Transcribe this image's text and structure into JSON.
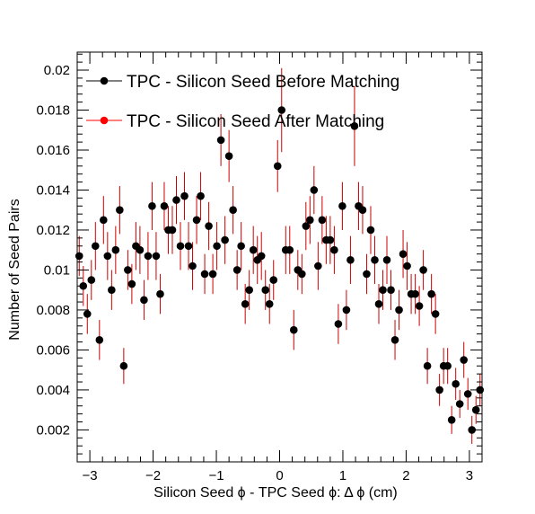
{
  "chart_data": {
    "type": "scatter",
    "title": "",
    "xlabel": "Silicon Seed  ϕ - TPC Seed  ϕ: Δ ϕ (cm)",
    "ylabel": "Number of Seed Pairs",
    "xlim": [
      -3.2,
      3.2
    ],
    "ylim": [
      0.0004,
      0.0209
    ],
    "xticks": [
      -3,
      -2,
      -1,
      0,
      1,
      2,
      3
    ],
    "xtick_labels": [
      "−3",
      "−2",
      "−1",
      "0",
      "1",
      "2",
      "3"
    ],
    "yticks": [
      0.002,
      0.004,
      0.006,
      0.008,
      0.01,
      0.012,
      0.014,
      0.016,
      0.018,
      0.02
    ],
    "ytick_labels": [
      "0.002",
      "0.004",
      "0.006",
      "0.008",
      "0.01",
      "0.012",
      "0.014",
      "0.016",
      "0.018",
      "0.02"
    ],
    "grid": false,
    "legend_position": "top-left",
    "series": [
      {
        "name": "TPC - Silicon Seed Before Matching",
        "marker_color": "#000000",
        "error_color": "#cc0000",
        "x": [
          -3.168,
          -3.104,
          -3.04,
          -2.976,
          -2.912,
          -2.848,
          -2.784,
          -2.72,
          -2.656,
          -2.592,
          -2.528,
          -2.464,
          -2.4,
          -2.336,
          -2.272,
          -2.208,
          -2.144,
          -2.08,
          -2.016,
          -1.952,
          -1.888,
          -1.824,
          -1.76,
          -1.696,
          -1.632,
          -1.568,
          -1.504,
          -1.44,
          -1.376,
          -1.312,
          -1.248,
          -1.184,
          -1.12,
          -1.056,
          -0.992,
          -0.928,
          -0.864,
          -0.8,
          -0.736,
          -0.672,
          -0.608,
          -0.544,
          -0.48,
          -0.416,
          -0.352,
          -0.288,
          -0.224,
          -0.16,
          -0.096,
          -0.032,
          0.032,
          0.096,
          0.16,
          0.224,
          0.288,
          0.352,
          0.416,
          0.48,
          0.544,
          0.608,
          0.672,
          0.736,
          0.8,
          0.864,
          0.928,
          0.992,
          1.056,
          1.12,
          1.184,
          1.248,
          1.312,
          1.376,
          1.44,
          1.504,
          1.568,
          1.632,
          1.696,
          1.76,
          1.824,
          1.888,
          1.952,
          2.016,
          2.08,
          2.144,
          2.208,
          2.272,
          2.336,
          2.4,
          2.464,
          2.528,
          2.592,
          2.656,
          2.72,
          2.784,
          2.848,
          2.912,
          2.976,
          3.04,
          3.104,
          3.168
        ],
        "y": [
          0.0107,
          0.0092,
          0.0078,
          0.0095,
          0.0112,
          0.0065,
          0.0125,
          0.0107,
          0.009,
          0.011,
          0.013,
          0.0052,
          0.01,
          0.0093,
          0.0112,
          0.011,
          0.0085,
          0.0107,
          0.0132,
          0.0107,
          0.0088,
          0.0132,
          0.012,
          0.012,
          0.0135,
          0.0112,
          0.0137,
          0.0112,
          0.0102,
          0.0125,
          0.0137,
          0.0098,
          0.0122,
          0.0098,
          0.0112,
          0.0165,
          0.0115,
          0.0157,
          0.013,
          0.01,
          0.0112,
          0.0083,
          0.009,
          0.011,
          0.0105,
          0.0107,
          0.009,
          0.0083,
          0.0095,
          0.0152,
          0.018,
          0.011,
          0.011,
          0.007,
          0.01,
          0.0098,
          0.0122,
          0.0125,
          0.014,
          0.0102,
          0.0125,
          0.0115,
          0.0115,
          0.011,
          0.0073,
          0.0132,
          0.008,
          0.0105,
          0.0172,
          0.0132,
          0.013,
          0.0098,
          0.012,
          0.0105,
          0.0083,
          0.009,
          0.0105,
          0.009,
          0.0065,
          0.008,
          0.0108,
          0.0102,
          0.0088,
          0.0088,
          0.0082,
          0.01,
          0.0052,
          0.0088,
          0.0078,
          0.004,
          0.0052,
          0.0052,
          0.0025,
          0.0043,
          0.0033,
          0.0055,
          0.0038,
          0.002,
          0.003,
          0.004
        ],
        "err": [
          0.001,
          0.001,
          0.001,
          0.001,
          0.0012,
          0.001,
          0.0012,
          0.0012,
          0.001,
          0.0012,
          0.0012,
          0.0009,
          0.001,
          0.001,
          0.0012,
          0.0012,
          0.001,
          0.0012,
          0.0012,
          0.0012,
          0.001,
          0.0012,
          0.0012,
          0.0012,
          0.0012,
          0.0012,
          0.0012,
          0.0012,
          0.0012,
          0.0012,
          0.0012,
          0.001,
          0.0012,
          0.001,
          0.0012,
          0.0013,
          0.0012,
          0.0013,
          0.0012,
          0.001,
          0.0012,
          0.001,
          0.001,
          0.0012,
          0.0012,
          0.0012,
          0.001,
          0.001,
          0.001,
          0.0013,
          0.0021,
          0.0012,
          0.0012,
          0.001,
          0.001,
          0.001,
          0.0012,
          0.0012,
          0.0012,
          0.0012,
          0.0012,
          0.0012,
          0.0012,
          0.0012,
          0.001,
          0.0012,
          0.001,
          0.0012,
          0.002,
          0.0012,
          0.0012,
          0.001,
          0.0012,
          0.0012,
          0.001,
          0.001,
          0.0012,
          0.001,
          0.001,
          0.001,
          0.0012,
          0.0012,
          0.001,
          0.001,
          0.001,
          0.001,
          0.0009,
          0.001,
          0.001,
          0.0008,
          0.0009,
          0.0009,
          0.0007,
          0.0008,
          0.0007,
          0.0009,
          0.0008,
          0.0007,
          0.0007,
          0.0008
        ]
      },
      {
        "name": "TPC - Silicon Seed After Matching",
        "marker_color": "#ff0000",
        "error_color": "#ff0000",
        "x": [],
        "y": []
      }
    ]
  }
}
